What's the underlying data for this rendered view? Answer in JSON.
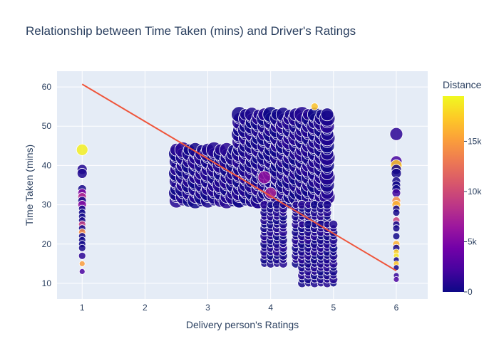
{
  "chart_data": {
    "type": "scatter",
    "title": "Relationship between Time Taken (mins) and Driver's Ratings",
    "xlabel": "Delivery person's Ratings",
    "ylabel": "Time Taken (mins)",
    "xlim": [
      0.6,
      6.5
    ],
    "ylim": [
      6,
      64
    ],
    "xticks": [
      1,
      2,
      3,
      4,
      5,
      6
    ],
    "yticks": [
      10,
      20,
      30,
      40,
      50,
      60
    ],
    "grid": true,
    "background": "#e5ecf6",
    "colorbar": {
      "title": "Distance",
      "range": [
        0,
        19500
      ],
      "ticks": [
        0,
        5000,
        10000,
        15000
      ],
      "tick_labels": [
        "0",
        "5k",
        "10k",
        "15k"
      ],
      "colors": [
        "#0d0887",
        "#46039f",
        "#7201a8",
        "#9c179e",
        "#bd3786",
        "#d8576b",
        "#ed7953",
        "#fb9f3a",
        "#fdca26",
        "#f0f921"
      ]
    },
    "trendline": {
      "color": "#ef553b",
      "x": [
        1,
        6
      ],
      "y": [
        60.7,
        13.2
      ]
    },
    "series": [
      {
        "points": [
          {
            "x": 1,
            "y": 44,
            "d": 19000,
            "s": 8
          },
          {
            "x": 1,
            "y": 39,
            "d": 800,
            "s": 7
          },
          {
            "x": 1,
            "y": 38,
            "d": 600,
            "s": 7
          },
          {
            "x": 1,
            "y": 34,
            "d": 300,
            "s": 6
          },
          {
            "x": 1,
            "y": 33,
            "d": 5200,
            "s": 6
          },
          {
            "x": 1,
            "y": 32,
            "d": 7800,
            "s": 6
          },
          {
            "x": 1,
            "y": 31,
            "d": 200,
            "s": 6
          },
          {
            "x": 1,
            "y": 30,
            "d": 5500,
            "s": 6
          },
          {
            "x": 1,
            "y": 29,
            "d": 300,
            "s": 5
          },
          {
            "x": 1,
            "y": 28,
            "d": 200,
            "s": 5
          },
          {
            "x": 1,
            "y": 27,
            "d": 200,
            "s": 5
          },
          {
            "x": 1,
            "y": 26,
            "d": 300,
            "s": 5
          },
          {
            "x": 1,
            "y": 25,
            "d": 9000,
            "s": 5
          },
          {
            "x": 1,
            "y": 24,
            "d": 300,
            "s": 5
          },
          {
            "x": 1,
            "y": 23,
            "d": 14000,
            "s": 5
          },
          {
            "x": 1,
            "y": 22,
            "d": 200,
            "s": 5
          },
          {
            "x": 1,
            "y": 21,
            "d": 200,
            "s": 5
          },
          {
            "x": 1,
            "y": 20,
            "d": 200,
            "s": 5
          },
          {
            "x": 1,
            "y": 19,
            "d": 300,
            "s": 5
          },
          {
            "x": 1,
            "y": 17,
            "d": 1200,
            "s": 5
          },
          {
            "x": 1,
            "y": 15,
            "d": 15000,
            "s": 4
          },
          {
            "x": 1,
            "y": 13,
            "d": 2400,
            "s": 4
          },
          {
            "x": 6,
            "y": 48,
            "d": 1200,
            "s": 9
          },
          {
            "x": 6,
            "y": 41,
            "d": 2200,
            "s": 8
          },
          {
            "x": 6,
            "y": 40,
            "d": 17000,
            "s": 8
          },
          {
            "x": 6,
            "y": 39,
            "d": 300,
            "s": 7
          },
          {
            "x": 6,
            "y": 38,
            "d": 300,
            "s": 7
          },
          {
            "x": 6,
            "y": 36,
            "d": 300,
            "s": 6
          },
          {
            "x": 6,
            "y": 35,
            "d": 200,
            "s": 6
          },
          {
            "x": 6,
            "y": 34,
            "d": 200,
            "s": 6
          },
          {
            "x": 6,
            "y": 33,
            "d": 2000,
            "s": 6
          },
          {
            "x": 6,
            "y": 31,
            "d": 14000,
            "s": 6
          },
          {
            "x": 6,
            "y": 30,
            "d": 16000,
            "s": 6
          },
          {
            "x": 6,
            "y": 29,
            "d": 300,
            "s": 5
          },
          {
            "x": 6,
            "y": 28,
            "d": 300,
            "s": 5
          },
          {
            "x": 6,
            "y": 26,
            "d": 9500,
            "s": 5
          },
          {
            "x": 6,
            "y": 25,
            "d": 300,
            "s": 5
          },
          {
            "x": 6,
            "y": 24,
            "d": 300,
            "s": 5
          },
          {
            "x": 6,
            "y": 22,
            "d": 200,
            "s": 5
          },
          {
            "x": 6,
            "y": 20,
            "d": 16000,
            "s": 5
          },
          {
            "x": 6,
            "y": 19,
            "d": 300,
            "s": 5
          },
          {
            "x": 6,
            "y": 18,
            "d": 17500,
            "s": 4
          },
          {
            "x": 6,
            "y": 17,
            "d": 18500,
            "s": 4
          },
          {
            "x": 6,
            "y": 16,
            "d": 300,
            "s": 4
          },
          {
            "x": 6,
            "y": 15,
            "d": 17000,
            "s": 4
          },
          {
            "x": 6,
            "y": 14,
            "d": 300,
            "s": 4
          },
          {
            "x": 6,
            "y": 12,
            "d": 1500,
            "s": 4
          },
          {
            "x": 6,
            "y": 11,
            "d": 2400,
            "s": 4
          },
          {
            "x": 3.9,
            "y": 37,
            "d": 6000,
            "s": 9
          },
          {
            "x": 4,
            "y": 33,
            "d": 7500,
            "s": 8
          },
          {
            "x": 4.7,
            "y": 55,
            "d": 17000,
            "s": 5
          }
        ]
      }
    ],
    "clusters": [
      {
        "x_from": 2.5,
        "x_to": 3.9,
        "x_step": 0.1,
        "y_from": 31,
        "y_to": 44,
        "y_step": 1
      },
      {
        "x_from": 3.5,
        "x_to": 4.9,
        "x_step": 0.1,
        "y_from": 31,
        "y_to": 53,
        "y_step": 1
      },
      {
        "x_from": 3.9,
        "x_to": 4.2,
        "x_step": 0.1,
        "y_from": 15,
        "y_to": 30,
        "y_step": 1
      },
      {
        "x_from": 4.4,
        "x_to": 4.9,
        "x_step": 0.1,
        "y_from": 15,
        "y_to": 30,
        "y_step": 1
      },
      {
        "x_from": 4.5,
        "x_to": 5,
        "x_step": 0.1,
        "y_from": 10,
        "y_to": 25,
        "y_step": 1
      }
    ]
  }
}
